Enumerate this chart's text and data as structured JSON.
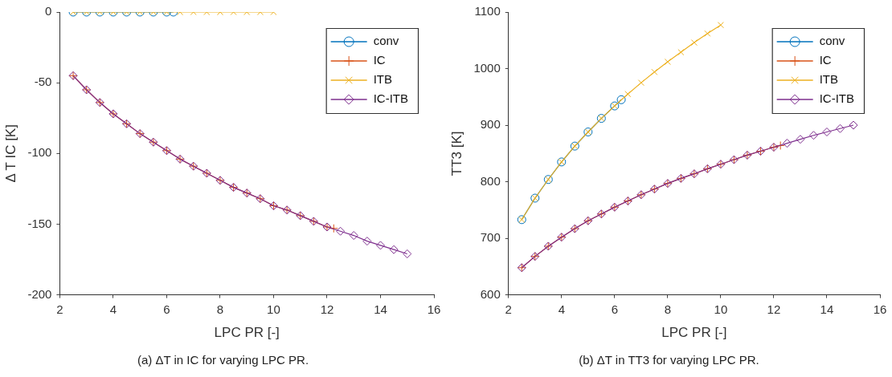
{
  "chart_data": [
    {
      "type": "line",
      "title": "(a) ΔT in IC for varying LPC PR.",
      "xlabel": "LPC PR [-]",
      "ylabel": "Δ T IC [K]",
      "xlim": [
        2,
        16
      ],
      "xticks": [
        2,
        4,
        6,
        8,
        10,
        12,
        14,
        16
      ],
      "ylim": [
        -200,
        0
      ],
      "yticks": [
        -200,
        -150,
        -100,
        -50,
        0
      ],
      "grid": false,
      "legend": "top right",
      "series": [
        {
          "name": "conv",
          "color": "#0072bd",
          "marker": "circle",
          "x": [
            2.5,
            3,
            3.5,
            4,
            4.5,
            5,
            5.5,
            6,
            6.25
          ],
          "values": [
            0,
            0,
            0,
            0,
            0,
            0,
            0,
            0,
            0
          ]
        },
        {
          "name": "IC",
          "color": "#d95319",
          "marker": "cross",
          "x": [
            2.5,
            3,
            3.5,
            4,
            4.5,
            5,
            5.5,
            6,
            6.5,
            7,
            7.5,
            8,
            8.5,
            9,
            9.5,
            10,
            10.5,
            11,
            11.5,
            12,
            12.25
          ],
          "values": [
            -45,
            -55,
            -64,
            -72,
            -79,
            -86,
            -92,
            -98,
            -104,
            -109,
            -114,
            -119,
            -124,
            -128,
            -132,
            -137,
            -140,
            -144,
            -148,
            -152,
            -153
          ]
        },
        {
          "name": "ITB",
          "color": "#edb120",
          "marker": "x",
          "x": [
            2.5,
            3,
            3.5,
            4,
            4.5,
            5,
            5.5,
            6,
            6.5,
            7,
            7.5,
            8,
            8.5,
            9,
            9.5,
            10
          ],
          "values": [
            0,
            0,
            0,
            0,
            0,
            0,
            0,
            0,
            0,
            0,
            0,
            0,
            0,
            0,
            0,
            0
          ]
        },
        {
          "name": "IC-ITB",
          "color": "#7e2f8e",
          "marker": "diamond",
          "x": [
            2.5,
            3,
            3.5,
            4,
            4.5,
            5,
            5.5,
            6,
            6.5,
            7,
            7.5,
            8,
            8.5,
            9,
            9.5,
            10,
            10.5,
            11,
            11.5,
            12,
            12.5,
            13,
            13.5,
            14,
            14.5,
            15
          ],
          "values": [
            -45,
            -55,
            -64,
            -72,
            -79,
            -86,
            -92,
            -98,
            -104,
            -109,
            -114,
            -119,
            -124,
            -128,
            -132,
            -137,
            -140,
            -144,
            -148,
            -152,
            -155,
            -158,
            -162,
            -165,
            -168,
            -171
          ]
        }
      ]
    },
    {
      "type": "line",
      "title": "(b) ΔT in TT3 for varying LPC PR.",
      "xlabel": "LPC PR [-]",
      "ylabel": "TT3 [K]",
      "xlim": [
        2,
        16
      ],
      "xticks": [
        2,
        4,
        6,
        8,
        10,
        12,
        14,
        16
      ],
      "ylim": [
        600,
        1100
      ],
      "yticks": [
        600,
        700,
        800,
        900,
        1000,
        1100
      ],
      "grid": false,
      "legend": "top right",
      "series": [
        {
          "name": "conv",
          "color": "#0072bd",
          "marker": "circle",
          "x": [
            2.5,
            3,
            3.5,
            4,
            4.5,
            5,
            5.5,
            6,
            6.25
          ],
          "values": [
            733,
            771,
            804,
            835,
            863,
            888,
            912,
            934,
            945
          ]
        },
        {
          "name": "IC",
          "color": "#d95319",
          "marker": "cross",
          "x": [
            2.5,
            3,
            3.5,
            4,
            4.5,
            5,
            5.5,
            6,
            6.5,
            7,
            7.5,
            8,
            8.5,
            9,
            9.5,
            10,
            10.5,
            11,
            11.5,
            12,
            12.25
          ],
          "values": [
            648,
            668,
            686,
            702,
            717,
            731,
            743,
            755,
            766,
            777,
            787,
            797,
            806,
            814,
            823,
            831,
            839,
            847,
            854,
            861,
            864
          ]
        },
        {
          "name": "ITB",
          "color": "#edb120",
          "marker": "x",
          "x": [
            2.5,
            3,
            3.5,
            4,
            4.5,
            5,
            5.5,
            6,
            6.5,
            7,
            7.5,
            8,
            8.5,
            9,
            9.5,
            10
          ],
          "values": [
            733,
            771,
            804,
            835,
            863,
            888,
            912,
            934,
            955,
            975,
            994,
            1012,
            1029,
            1046,
            1062,
            1077
          ]
        },
        {
          "name": "IC-ITB",
          "color": "#7e2f8e",
          "marker": "diamond",
          "x": [
            2.5,
            3,
            3.5,
            4,
            4.5,
            5,
            5.5,
            6,
            6.5,
            7,
            7.5,
            8,
            8.5,
            9,
            9.5,
            10,
            10.5,
            11,
            11.5,
            12,
            12.5,
            13,
            13.5,
            14,
            14.5,
            15
          ],
          "values": [
            648,
            668,
            686,
            702,
            717,
            731,
            743,
            755,
            766,
            777,
            787,
            797,
            806,
            814,
            823,
            831,
            839,
            847,
            854,
            861,
            868,
            875,
            882,
            888,
            894,
            900
          ]
        }
      ]
    }
  ]
}
